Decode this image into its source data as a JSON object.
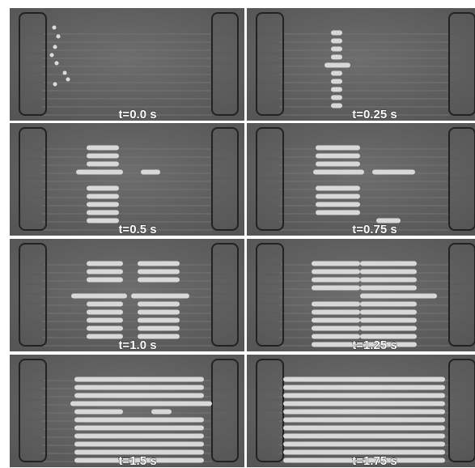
{
  "panels": [
    "t=0.0 s",
    "t=0.25 s",
    "t=0.5 s",
    "t=0.75 s",
    "t=1.0 s",
    "t=1.25 s",
    "t=1.5 s",
    "t=1.75 s"
  ]
}
